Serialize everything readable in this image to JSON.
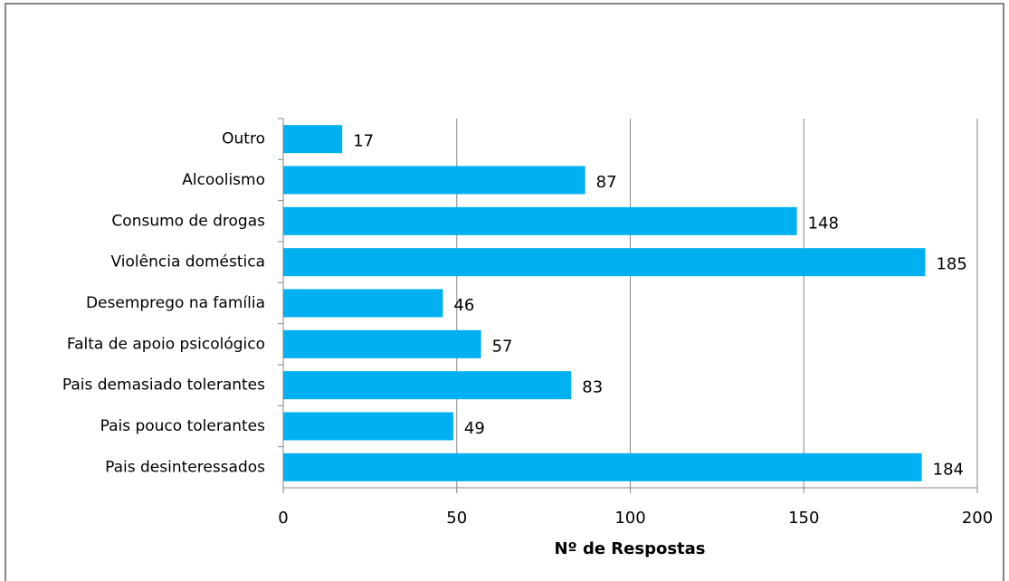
{
  "chart_data": {
    "type": "bar",
    "orientation": "horizontal",
    "categories": [
      "Outro",
      "Alcoolismo",
      "Consumo de drogas",
      "Violência doméstica",
      "Desemprego na família",
      "Falta de apoio psicológico",
      "Pais demasiado tolerantes",
      "Pais pouco tolerantes",
      "Pais desinteressados"
    ],
    "values": [
      17,
      87,
      148,
      185,
      46,
      57,
      83,
      49,
      184
    ],
    "color": "#00b0f0",
    "x_label": "Nº de Respostas",
    "xlim": [
      0,
      200
    ],
    "xticks": [
      0,
      50,
      100,
      150,
      200
    ],
    "grid": true
  }
}
